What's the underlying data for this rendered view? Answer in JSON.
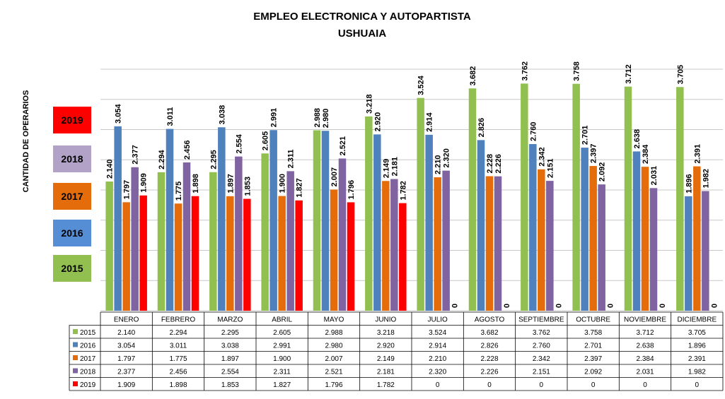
{
  "chart_data": {
    "type": "bar",
    "title": "EMPLEO ELECTRONICA Y AUTOPARTISTA",
    "subtitle": "USHUAIA",
    "ylabel": "CANTIDAD DE OPERARIOS",
    "xlabel": "",
    "ylim": [
      0,
      4000
    ],
    "grid": true,
    "legend_placement": "left",
    "categories": [
      "ENERO",
      "FEBRERO",
      "MARZO",
      "ABRIL",
      "MAYO",
      "JUNIO",
      "JULIO",
      "AGOSTO",
      "SEPTIEMBRE",
      "OCTUBRE",
      "NOVIEMBRE",
      "DICIEMBRE"
    ],
    "series": [
      {
        "name": "2015",
        "color": "#92c050",
        "values": [
          2140,
          2294,
          2295,
          2605,
          2988,
          3218,
          3524,
          3682,
          3762,
          3758,
          3712,
          3705
        ],
        "labels": [
          "2.140",
          "2.294",
          "2.295",
          "2.605",
          "2.988",
          "3.218",
          "3.524",
          "3.682",
          "3.762",
          "3.758",
          "3.712",
          "3.705"
        ]
      },
      {
        "name": "2016",
        "color": "#4f81bd",
        "values": [
          3054,
          3011,
          3038,
          2991,
          2980,
          2920,
          2914,
          2826,
          2760,
          2701,
          2638,
          1896
        ],
        "labels": [
          "3.054",
          "3.011",
          "3.038",
          "2.991",
          "2.980",
          "2.920",
          "2.914",
          "2.826",
          "2.760",
          "2.701",
          "2.638",
          "1.896"
        ]
      },
      {
        "name": "2017",
        "color": "#e46c0a",
        "values": [
          1797,
          1775,
          1897,
          1900,
          2007,
          2149,
          2210,
          2228,
          2342,
          2397,
          2384,
          2391
        ],
        "labels": [
          "1.797",
          "1.775",
          "1.897",
          "1.900",
          "2.007",
          "2.149",
          "2.210",
          "2.228",
          "2.342",
          "2.397",
          "2.384",
          "2.391"
        ]
      },
      {
        "name": "2018",
        "color": "#8064a2",
        "values": [
          2377,
          2456,
          2554,
          2311,
          2521,
          2181,
          2320,
          2226,
          2151,
          2092,
          2031,
          1982
        ],
        "labels": [
          "2.377",
          "2.456",
          "2.554",
          "2.311",
          "2.521",
          "2.181",
          "2.320",
          "2.226",
          "2.151",
          "2.092",
          "2.031",
          "1.982"
        ]
      },
      {
        "name": "2019",
        "color": "#ff0000",
        "values": [
          1909,
          1898,
          1853,
          1827,
          1796,
          1782,
          0,
          0,
          0,
          0,
          0,
          0
        ],
        "labels": [
          "1.909",
          "1.898",
          "1.853",
          "1.827",
          "1.796",
          "1.782",
          "0",
          "0",
          "0",
          "0",
          "0",
          "0"
        ]
      }
    ],
    "legend_boxes": [
      {
        "name": "2019",
        "color": "#ff0000"
      },
      {
        "name": "2018",
        "color": "#b3a2c7"
      },
      {
        "name": "2017",
        "color": "#e46c0a"
      },
      {
        "name": "2016",
        "color": "#558ed5"
      },
      {
        "name": "2015",
        "color": "#92c050"
      }
    ]
  }
}
